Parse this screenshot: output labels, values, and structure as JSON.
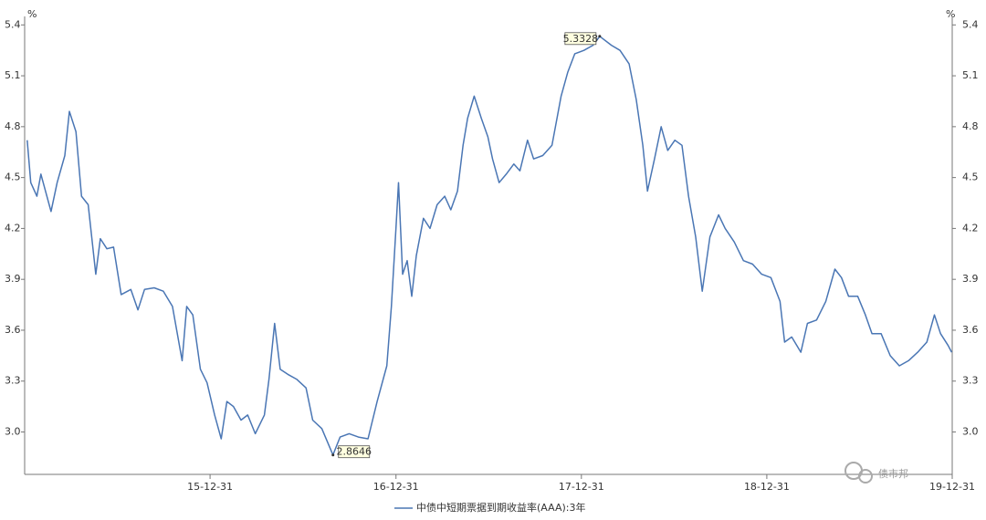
{
  "chart_data": {
    "type": "line",
    "y_label": "%",
    "y2_label": "%",
    "x": [
      "15-01-05",
      "15-01-12",
      "15-01-24",
      "15-02-01",
      "15-02-21",
      "15-03-05",
      "15-03-20",
      "15-03-29",
      "15-04-11",
      "15-04-22",
      "15-05-05",
      "15-05-20",
      "15-05-29",
      "15-06-11",
      "15-06-24",
      "15-07-09",
      "15-07-28",
      "15-08-11",
      "15-08-24",
      "15-09-12",
      "15-09-30",
      "15-10-18",
      "15-11-06",
      "15-11-15",
      "15-11-27",
      "15-12-12",
      "15-12-25",
      "16-01-09",
      "16-01-22",
      "16-02-02",
      "16-02-15",
      "16-03-01",
      "16-03-14",
      "16-03-29",
      "16-04-16",
      "16-04-25",
      "16-05-06",
      "16-05-17",
      "16-06-01",
      "16-06-19",
      "16-07-07",
      "16-07-20",
      "16-08-07",
      "16-08-29",
      "16-09-12",
      "16-09-30",
      "16-10-18",
      "16-11-06",
      "16-11-24",
      "16-12-13",
      "16-12-22",
      "16-12-31",
      "17-01-05",
      "17-01-13",
      "17-01-22",
      "17-01-31",
      "17-02-09",
      "17-02-23",
      "17-03-08",
      "17-03-22",
      "17-04-06",
      "17-04-18",
      "17-05-01",
      "17-05-12",
      "17-05-21",
      "17-06-03",
      "17-06-17",
      "17-06-30",
      "17-07-09",
      "17-07-22",
      "17-08-05",
      "17-08-20",
      "17-09-01",
      "17-09-16",
      "17-09-28",
      "17-10-16",
      "17-11-03",
      "17-11-21",
      "17-12-04",
      "17-12-18",
      "18-01-05",
      "18-01-23",
      "18-02-05",
      "18-02-28",
      "18-03-17",
      "18-04-04",
      "18-04-18",
      "18-05-01",
      "18-05-10",
      "18-05-24",
      "18-06-06",
      "18-06-19",
      "18-07-03",
      "18-07-17",
      "18-07-30",
      "18-08-13",
      "18-08-26",
      "18-09-10",
      "18-09-27",
      "18-10-10",
      "18-10-28",
      "18-11-15",
      "18-12-03",
      "18-12-21",
      "19-01-08",
      "19-01-26",
      "19-02-04",
      "19-02-18",
      "19-03-08",
      "19-03-21",
      "19-04-08",
      "19-04-26",
      "19-05-14",
      "19-05-27",
      "19-06-10",
      "19-06-28",
      "19-07-13",
      "19-07-26",
      "19-08-13",
      "19-08-31",
      "19-09-18",
      "19-10-06",
      "19-10-24",
      "19-11-11",
      "19-11-26",
      "19-12-08",
      "19-12-23",
      "19-12-30"
    ],
    "series": [
      {
        "name": "中债中短期票据到期收益率(AAA):3年",
        "color": "#4a76b4",
        "values": [
          4.72,
          4.47,
          4.39,
          4.52,
          4.3,
          4.47,
          4.63,
          4.89,
          4.77,
          4.39,
          4.34,
          3.93,
          4.14,
          4.08,
          4.09,
          3.81,
          3.84,
          3.72,
          3.84,
          3.85,
          3.83,
          3.74,
          3.42,
          3.74,
          3.69,
          3.37,
          3.29,
          3.1,
          2.96,
          3.18,
          3.15,
          3.07,
          3.1,
          2.99,
          3.1,
          3.31,
          3.64,
          3.37,
          3.34,
          3.31,
          3.26,
          3.07,
          3.02,
          2.8646,
          2.97,
          2.99,
          2.97,
          2.96,
          3.18,
          3.39,
          3.74,
          4.2,
          4.47,
          3.93,
          4.01,
          3.8,
          4.04,
          4.26,
          4.2,
          4.34,
          4.39,
          4.31,
          4.42,
          4.69,
          4.85,
          4.98,
          4.85,
          4.74,
          4.61,
          4.47,
          4.52,
          4.58,
          4.54,
          4.72,
          4.61,
          4.63,
          4.69,
          4.98,
          5.12,
          5.23,
          5.25,
          5.28,
          5.3328,
          5.28,
          5.25,
          5.17,
          4.96,
          4.69,
          4.42,
          4.61,
          4.8,
          4.66,
          4.72,
          4.69,
          4.39,
          4.15,
          3.83,
          4.15,
          4.28,
          4.2,
          4.12,
          4.01,
          3.99,
          3.93,
          3.91,
          3.77,
          3.53,
          3.56,
          3.47,
          3.64,
          3.66,
          3.77,
          3.96,
          3.91,
          3.8,
          3.8,
          3.69,
          3.58,
          3.58,
          3.45,
          3.39,
          3.42,
          3.47,
          3.53,
          3.69,
          3.58,
          3.51,
          3.47
        ]
      }
    ],
    "annotations": [
      {
        "x": "18-02-05",
        "value": 5.3328
      },
      {
        "x": "16-08-29",
        "value": 2.8646
      }
    ],
    "xlim": [
      "14-12-31",
      "19-12-31"
    ],
    "xticks": [
      "15-12-31",
      "16-12-31",
      "17-12-31",
      "18-12-31",
      "19-12-31"
    ],
    "ylim": [
      2.75,
      5.45
    ],
    "yticks": [
      {
        "value": 3,
        "label": "3.0"
      },
      {
        "value": 3.3,
        "label": "3.3"
      },
      {
        "value": 3.6,
        "label": "3.6"
      },
      {
        "value": 3.9,
        "label": "3.9"
      },
      {
        "value": 4.2,
        "label": "4.2"
      },
      {
        "value": 4.5,
        "label": "4.5"
      },
      {
        "value": 4.8,
        "label": "4.8"
      },
      {
        "value": 5.1,
        "label": "5.1"
      },
      {
        "value": 5.4,
        "label": "5.4"
      }
    ],
    "y2lim": [
      2.75,
      5.45
    ],
    "y2ticks": [
      {
        "value": 3,
        "label": "3.0"
      },
      {
        "value": 3.3,
        "label": "3.3"
      },
      {
        "value": 3.6,
        "label": "3.6"
      },
      {
        "value": 3.9,
        "label": "3.9"
      },
      {
        "value": 4.2,
        "label": "4.2"
      },
      {
        "value": 4.5,
        "label": "4.5"
      },
      {
        "value": 4.8,
        "label": "4.8"
      },
      {
        "value": 5.1,
        "label": "5.1"
      },
      {
        "value": 5.4,
        "label": "5.4"
      }
    ],
    "grid": false,
    "watermark": "债市邦"
  }
}
